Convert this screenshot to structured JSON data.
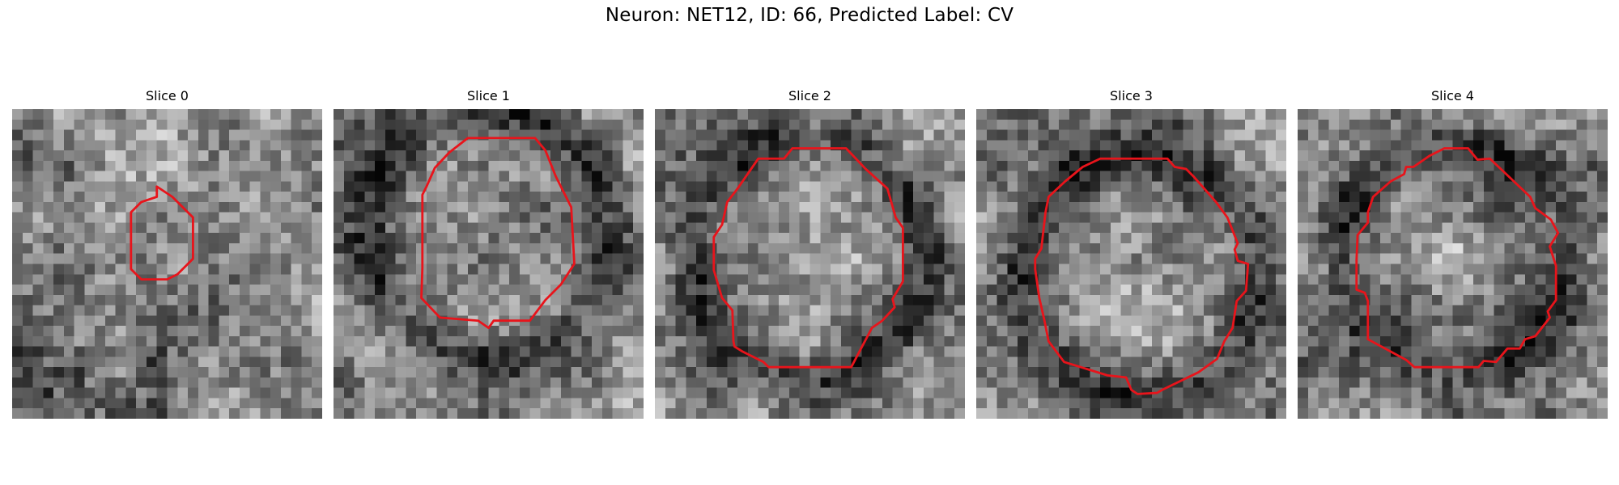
{
  "figure": {
    "title": "Neuron: NET12, ID: 66, Predicted Label: CV"
  },
  "panels": [
    {
      "title": "Slice 0",
      "seed": 7,
      "contour": [
        [
          14,
          7.5
        ],
        [
          15.5,
          8.5
        ],
        [
          17.5,
          10.5
        ],
        [
          17.5,
          14.5
        ],
        [
          16,
          16
        ],
        [
          15,
          16.5
        ],
        [
          12.5,
          16.5
        ],
        [
          11.5,
          15.5
        ],
        [
          11.5,
          10
        ],
        [
          12.5,
          9
        ],
        [
          14,
          8.5
        ]
      ],
      "dark_blob": {
        "cx": 12.5,
        "cy": 14.5,
        "r": 3.5,
        "depth": 0.22
      },
      "corner_dark": {
        "x": 0,
        "y": 23,
        "w": 15,
        "h": 7
      }
    },
    {
      "title": "Slice 1",
      "seed": 19,
      "contour": [
        [
          13,
          2.8
        ],
        [
          19.5,
          2.8
        ],
        [
          20.5,
          4
        ],
        [
          21.5,
          6.5
        ],
        [
          23,
          9.5
        ],
        [
          23.3,
          15
        ],
        [
          22,
          17
        ],
        [
          20.5,
          18.5
        ],
        [
          19,
          20.5
        ],
        [
          15.5,
          20.5
        ],
        [
          15,
          21.2
        ],
        [
          14,
          20.5
        ],
        [
          10.3,
          20.2
        ],
        [
          8.5,
          18.3
        ],
        [
          8.6,
          15.4
        ],
        [
          8.6,
          8.3
        ],
        [
          9,
          7.5
        ],
        [
          9.8,
          5.7
        ],
        [
          11.2,
          4.2
        ]
      ],
      "dark_ring": {
        "cx": 15,
        "cy": 12,
        "r": 12,
        "width": 2.3,
        "depth": 0.28
      }
    },
    {
      "title": "Slice 2",
      "seed": 31,
      "contour": [
        [
          10,
          4.8
        ],
        [
          12.5,
          4.8
        ],
        [
          13.3,
          3.8
        ],
        [
          18.5,
          3.8
        ],
        [
          20.4,
          5.8
        ],
        [
          22.5,
          7.7
        ],
        [
          23.3,
          10.5
        ],
        [
          24,
          11.5
        ],
        [
          24,
          16.7
        ],
        [
          23,
          18.4
        ],
        [
          23.2,
          19.2
        ],
        [
          22,
          20.5
        ],
        [
          21,
          21.2
        ],
        [
          19,
          25
        ],
        [
          11,
          25
        ],
        [
          10.5,
          24.5
        ],
        [
          8.5,
          23.5
        ],
        [
          7.7,
          23
        ],
        [
          7.6,
          22.5
        ],
        [
          7.5,
          19.5
        ],
        [
          6.5,
          18.3
        ],
        [
          5.7,
          15.6
        ],
        [
          5.7,
          12.4
        ],
        [
          6.5,
          11.2
        ],
        [
          7,
          9
        ],
        [
          8,
          7.7
        ]
      ],
      "dark_ring": {
        "cx": 15,
        "cy": 14.5,
        "r": 11.5,
        "width": 2.3,
        "depth": 0.3
      }
    },
    {
      "title": "Slice 3",
      "seed": 43,
      "contour": [
        [
          12,
          4.8
        ],
        [
          18.5,
          4.8
        ],
        [
          19.2,
          5.6
        ],
        [
          20.3,
          5.8
        ],
        [
          21,
          6.5
        ],
        [
          23.2,
          9
        ],
        [
          24.3,
          10.5
        ],
        [
          25.3,
          13
        ],
        [
          25,
          13.6
        ],
        [
          25.3,
          14.7
        ],
        [
          26.3,
          15
        ],
        [
          26.1,
          17.6
        ],
        [
          25.2,
          18.6
        ],
        [
          24.8,
          21.2
        ],
        [
          24,
          22.5
        ],
        [
          23.3,
          24.2
        ],
        [
          21.5,
          25.5
        ],
        [
          18,
          27.2
        ],
        [
          17.5,
          27.5
        ],
        [
          15.6,
          27.6
        ],
        [
          15,
          27.2
        ],
        [
          14.5,
          26
        ],
        [
          12.7,
          25.8
        ],
        [
          8.5,
          24.5
        ],
        [
          7,
          22.5
        ],
        [
          6.6,
          20.5
        ],
        [
          6.1,
          18.3
        ],
        [
          5.7,
          15.5
        ],
        [
          5.7,
          14.5
        ],
        [
          6.3,
          13.5
        ],
        [
          6.7,
          10
        ],
        [
          7,
          8.5
        ],
        [
          8.6,
          7
        ],
        [
          10.3,
          5.6
        ]
      ],
      "dark_ring": {
        "cx": 15.6,
        "cy": 16,
        "r": 11.5,
        "width": 2.5,
        "depth": 0.28
      },
      "bright_core": {
        "cx": 15,
        "cy": 17,
        "r": 7,
        "lift": 0.18
      }
    },
    {
      "title": "Slice 4",
      "seed": 59,
      "contour": [
        [
          12.8,
          4.5
        ],
        [
          14.2,
          3.8
        ],
        [
          16.5,
          3.8
        ],
        [
          17.4,
          4.9
        ],
        [
          18.6,
          4.8
        ],
        [
          20.4,
          6.5
        ],
        [
          22.5,
          8.5
        ],
        [
          23,
          9.6
        ],
        [
          24.5,
          10.7
        ],
        [
          25.2,
          12
        ],
        [
          24.4,
          13.3
        ],
        [
          25,
          15.2
        ],
        [
          25,
          18.5
        ],
        [
          24.2,
          19.6
        ],
        [
          24.4,
          20.2
        ],
        [
          23,
          22
        ],
        [
          22,
          22.3
        ],
        [
          21.5,
          23.2
        ],
        [
          20.3,
          23.2
        ],
        [
          19.2,
          24.5
        ],
        [
          18,
          24.4
        ],
        [
          17.5,
          25
        ],
        [
          11.3,
          25
        ],
        [
          10.5,
          24.3
        ],
        [
          6.8,
          22.3
        ],
        [
          6.8,
          18.6
        ],
        [
          6.5,
          17.8
        ],
        [
          5.7,
          17.5
        ],
        [
          5.7,
          14.6
        ],
        [
          5.8,
          12.2
        ],
        [
          6.8,
          11
        ],
        [
          6.8,
          10
        ],
        [
          7.3,
          8.5
        ],
        [
          9,
          7
        ],
        [
          10.3,
          6.3
        ],
        [
          10.5,
          5.6
        ],
        [
          11.2,
          5.6
        ]
      ],
      "dark_ring": {
        "cx": 15.3,
        "cy": 14.5,
        "r": 11,
        "width": 2.3,
        "depth": 0.3
      },
      "bright_core": {
        "cx": 15,
        "cy": 14,
        "r": 7,
        "lift": 0.12
      }
    }
  ]
}
